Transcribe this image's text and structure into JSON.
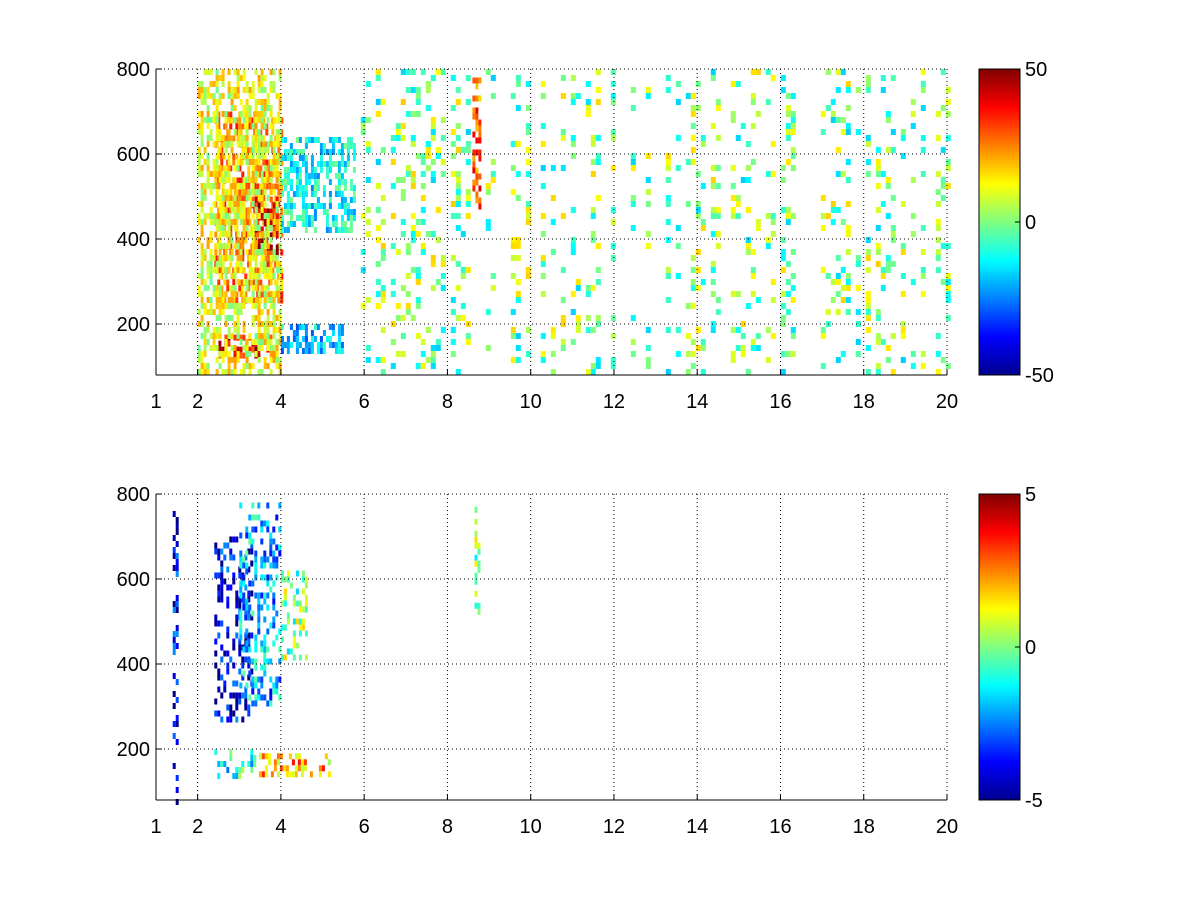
{
  "chart_data": [
    {
      "type": "heatmap",
      "title": "",
      "xlabel": "",
      "ylabel": "",
      "xlim": [
        1,
        20
      ],
      "ylim": [
        80,
        800
      ],
      "xticks": [
        1,
        2,
        4,
        6,
        8,
        10,
        12,
        14,
        16,
        18,
        20
      ],
      "xtick_labels": [
        "1",
        "2",
        "4",
        "6",
        "8",
        "10",
        "12",
        "14",
        "16",
        "18",
        "20"
      ],
      "yticks": [
        200,
        400,
        600,
        800
      ],
      "ytick_labels": [
        "200",
        "400",
        "600",
        "800"
      ],
      "grid": true,
      "colormap": "jet",
      "clim": [
        -50,
        50
      ],
      "colorbar_ticks": [
        50,
        0,
        -50
      ],
      "colorbar_labels": [
        "50",
        "0",
        "-50"
      ],
      "features": [
        {
          "x": [
            2.4,
            4.0
          ],
          "y": [
            260,
            700
          ],
          "value": 25
        },
        {
          "x": [
            3.3,
            3.9
          ],
          "y": [
            360,
            500
          ],
          "value": 40
        },
        {
          "x": [
            2.5,
            3.9
          ],
          "y": [
            130,
            175
          ],
          "value": 38
        },
        {
          "x": [
            2.0,
            4.0
          ],
          "y": [
            80,
            800
          ],
          "value": 10
        },
        {
          "x": [
            4.0,
            5.8
          ],
          "y": [
            420,
            640
          ],
          "value": -12
        },
        {
          "x": [
            4.0,
            5.5
          ],
          "y": [
            140,
            200
          ],
          "value": -18
        },
        {
          "x": [
            8.6,
            8.8
          ],
          "y": [
            480,
            780
          ],
          "value": 28
        },
        {
          "x": [
            5.8,
            20.0
          ],
          "y": [
            80,
            800
          ],
          "value": 0
        }
      ]
    },
    {
      "type": "heatmap",
      "title": "",
      "xlabel": "",
      "ylabel": "",
      "xlim": [
        1,
        20
      ],
      "ylim": [
        80,
        800
      ],
      "xticks": [
        1,
        2,
        4,
        6,
        8,
        10,
        12,
        14,
        16,
        18,
        20
      ],
      "xtick_labels": [
        "1",
        "2",
        "4",
        "6",
        "8",
        "10",
        "12",
        "14",
        "16",
        "18",
        "20"
      ],
      "yticks": [
        200,
        400,
        600,
        800
      ],
      "ytick_labels": [
        "200",
        "400",
        "600",
        "800"
      ],
      "grid": true,
      "colormap": "jet",
      "clim": [
        -5,
        5
      ],
      "colorbar_ticks": [
        5,
        0,
        -5
      ],
      "colorbar_labels": [
        "5",
        "0",
        "-5"
      ],
      "features": [
        {
          "x": [
            2.4,
            3.3
          ],
          "y": [
            270,
            700
          ],
          "value": -4
        },
        {
          "x": [
            3.0,
            4.0
          ],
          "y": [
            300,
            780
          ],
          "value": -2
        },
        {
          "x": [
            4.0,
            4.6
          ],
          "y": [
            420,
            620
          ],
          "value": 0
        },
        {
          "x": [
            2.4,
            3.4
          ],
          "y": [
            140,
            200
          ],
          "value": -1
        },
        {
          "x": [
            3.4,
            5.2
          ],
          "y": [
            140,
            190
          ],
          "value": 2
        },
        {
          "x": [
            8.65,
            8.75
          ],
          "y": [
            520,
            770
          ],
          "value": 0
        },
        {
          "x": [
            1.4,
            1.5
          ],
          "y": [
            80,
            760
          ],
          "value": -4
        }
      ]
    }
  ]
}
